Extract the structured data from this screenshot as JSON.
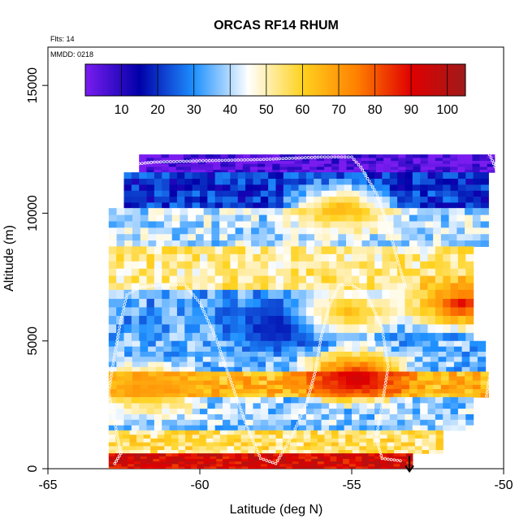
{
  "chart_data": {
    "type": "heatmap",
    "title": "ORCAS RF14 RHUM",
    "subtitle_flights": "Flts: 14",
    "subtitle_date": "MMDD: 0218",
    "xlabel": "Latitude (deg N)",
    "ylabel": "Altitude (m)",
    "xlim": [
      -65,
      -50
    ],
    "ylim": [
      0,
      16500
    ],
    "x_ticks": [
      "-65",
      "-60",
      "-55",
      "-50"
    ],
    "x_tick_values": [
      -65,
      -60,
      -55,
      -50
    ],
    "y_ticks": [
      "0",
      "5000",
      "10000",
      "15000"
    ],
    "y_tick_values": [
      0,
      5000,
      10000,
      15000
    ],
    "colorbar": {
      "range": [
        0,
        105
      ],
      "tick_labels": [
        "10",
        "20",
        "30",
        "40",
        "50",
        "60",
        "70",
        "80",
        "90",
        "100"
      ],
      "tick_values": [
        10,
        20,
        30,
        40,
        50,
        60,
        70,
        80,
        90,
        100
      ],
      "colors": [
        "#7a1cf0",
        "#0000a8",
        "#1e90ff",
        "#ffffff",
        "#ffd21f",
        "#ff8000",
        "#e00000",
        "#a01a1a"
      ]
    },
    "layers": [
      {
        "name": "upper-purple",
        "lat": [
          -62,
          -50.3
        ],
        "alt": [
          11600,
          12300
        ],
        "rh": 3
      },
      {
        "name": "upper-blue",
        "lat": [
          -62.5,
          -50.5
        ],
        "alt": [
          10200,
          11600
        ],
        "rh": 20
      },
      {
        "name": "upper-mid",
        "lat": [
          -63,
          -50.5
        ],
        "alt": [
          8700,
          10200
        ],
        "rh": 40
      },
      {
        "name": "pale-band",
        "lat": [
          -63,
          -51
        ],
        "alt": [
          7000,
          8700
        ],
        "rh": 52
      },
      {
        "name": "mid-blue",
        "lat": [
          -63,
          -51
        ],
        "alt": [
          5000,
          7000
        ],
        "rh": 33
      },
      {
        "name": "lower-mid",
        "lat": [
          -63,
          -50.6
        ],
        "alt": [
          3800,
          5000
        ],
        "rh": 35
      },
      {
        "name": "moist-band",
        "lat": [
          -63,
          -50.5
        ],
        "alt": [
          2800,
          3800
        ],
        "rh": 65
      },
      {
        "name": "lower-blue",
        "lat": [
          -63,
          -51
        ],
        "alt": [
          1500,
          2800
        ],
        "rh": 38
      },
      {
        "name": "near-surface",
        "lat": [
          -63,
          -52
        ],
        "alt": [
          600,
          1500
        ],
        "rh": 55
      },
      {
        "name": "surface-red",
        "lat": [
          -63,
          -53
        ],
        "alt": [
          0,
          600
        ],
        "rh": 92
      }
    ],
    "features": [
      {
        "name": "moist-core",
        "lat": -55,
        "alt": 3500,
        "rh": 95
      },
      {
        "name": "mid-yellow",
        "lat": -55.5,
        "alt": 10100,
        "rh": 68
      },
      {
        "name": "dry-pocket",
        "lat": -57.5,
        "alt": 5500,
        "rh": 15
      },
      {
        "name": "column-yellow",
        "lat": -55.2,
        "alt": 6000,
        "rh": 65
      },
      {
        "name": "east-red-streak",
        "lat": -51.5,
        "alt": 6300,
        "rh": 90
      },
      {
        "name": "west-yellow",
        "lat": -61.8,
        "alt": 3000,
        "rh": 70
      }
    ],
    "flight_track": [
      [
        -62.8,
        200
      ],
      [
        -62.6,
        600
      ],
      [
        -62.8,
        1800
      ],
      [
        -63.0,
        3000
      ],
      [
        -62.8,
        4500
      ],
      [
        -62.6,
        5800
      ],
      [
        -62.4,
        6800
      ],
      [
        -62.0,
        7100
      ],
      [
        -61.2,
        7200
      ],
      [
        -60.5,
        7200
      ],
      [
        -60.0,
        6500
      ],
      [
        -59.5,
        5200
      ],
      [
        -59.0,
        3500
      ],
      [
        -58.5,
        1800
      ],
      [
        -58.0,
        400
      ],
      [
        -57.5,
        200
      ],
      [
        -57.0,
        1200
      ],
      [
        -56.5,
        2500
      ],
      [
        -56.2,
        3800
      ],
      [
        -56.0,
        5200
      ],
      [
        -55.7,
        6500
      ],
      [
        -55.4,
        7200
      ],
      [
        -55.0,
        7200
      ],
      [
        -54.5,
        6800
      ],
      [
        -54.0,
        5500
      ],
      [
        -53.8,
        4000
      ],
      [
        -54.0,
        2500
      ],
      [
        -54.2,
        1200
      ],
      [
        -54.0,
        400
      ],
      [
        -53.3,
        300
      ]
    ],
    "upper_track": [
      [
        -62.3,
        11900
      ],
      [
        -61.5,
        12000
      ],
      [
        -60.0,
        12050
      ],
      [
        -58.0,
        12100
      ],
      [
        -56.0,
        12200
      ],
      [
        -55.0,
        12200
      ],
      [
        -54.7,
        11800
      ],
      [
        -54.2,
        10800
      ],
      [
        -53.8,
        9500
      ],
      [
        -53.5,
        8200
      ],
      [
        -53.2,
        7000
      ]
    ],
    "right_track": [
      [
        -51.8,
        12400
      ],
      [
        -50.5,
        12400
      ],
      [
        -50.2,
        11600
      ],
      [
        -50.1,
        10000
      ],
      [
        -50.2,
        8000
      ],
      [
        -50.3,
        6000
      ],
      [
        -50.4,
        4000
      ],
      [
        -50.6,
        2600
      ]
    ],
    "arrow": {
      "lat": -53.1,
      "alt": 500
    }
  }
}
